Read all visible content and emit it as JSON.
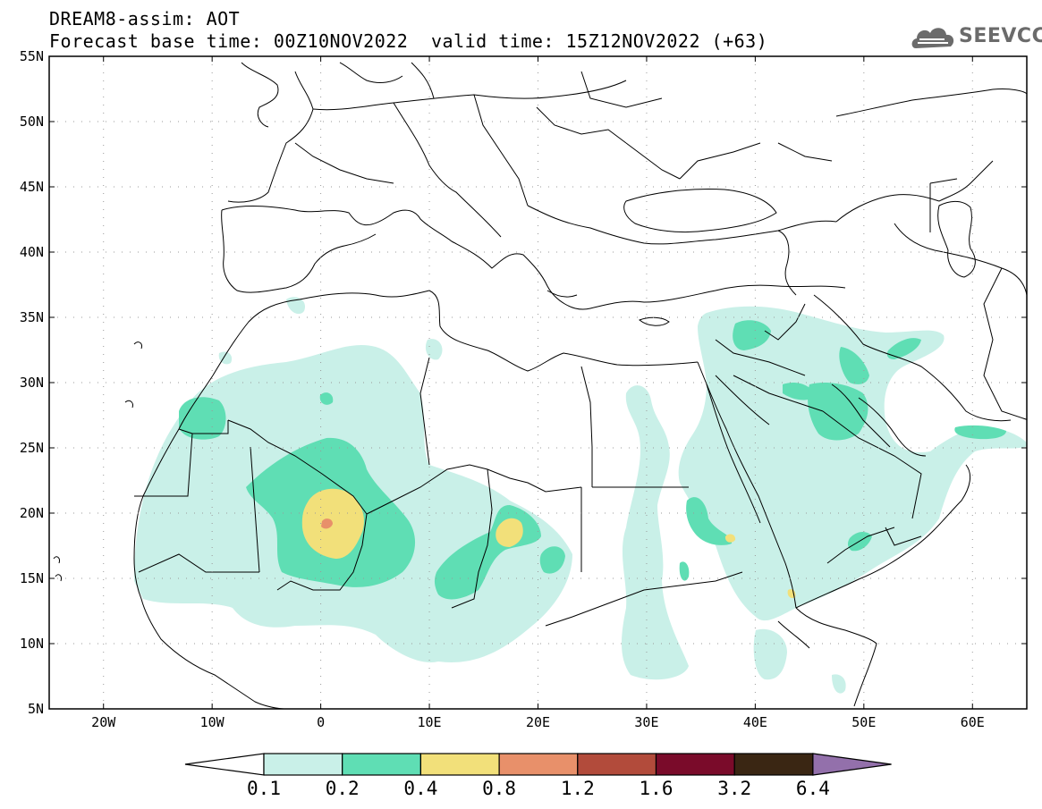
{
  "header": {
    "title_line1": "DREAM8-assim: AOT",
    "title_line2": "Forecast base time: 00Z10NOV2022",
    "valid_time": "valid time: 15Z12NOV2022 (+63)",
    "logo_text": "SEEVCCC"
  },
  "map": {
    "lon_range": [
      -25,
      65
    ],
    "lat_range": [
      5,
      55
    ],
    "lat_ticks": [
      {
        "value": 55,
        "label": "55N"
      },
      {
        "value": 50,
        "label": "50N"
      },
      {
        "value": 45,
        "label": "45N"
      },
      {
        "value": 40,
        "label": "40N"
      },
      {
        "value": 35,
        "label": "35N"
      },
      {
        "value": 30,
        "label": "30N"
      },
      {
        "value": 25,
        "label": "25N"
      },
      {
        "value": 20,
        "label": "20N"
      },
      {
        "value": 15,
        "label": "15N"
      },
      {
        "value": 10,
        "label": "10N"
      },
      {
        "value": 5,
        "label": "5N"
      }
    ],
    "lon_ticks": [
      {
        "value": -20,
        "label": "20W"
      },
      {
        "value": -10,
        "label": "10W"
      },
      {
        "value": 0,
        "label": "0"
      },
      {
        "value": 10,
        "label": "10E"
      },
      {
        "value": 20,
        "label": "20E"
      },
      {
        "value": 30,
        "label": "30E"
      },
      {
        "value": 40,
        "label": "40E"
      },
      {
        "value": 50,
        "label": "50E"
      },
      {
        "value": 60,
        "label": "60E"
      }
    ],
    "grid": "dotted"
  },
  "colorbar": {
    "labels": [
      "0.1",
      "0.2",
      "0.4",
      "0.8",
      "1.2",
      "1.6",
      "3.2",
      "6.4"
    ],
    "colors": [
      "#c9f0e8",
      "#5fdeb4",
      "#f2e07a",
      "#e8906a",
      "#b24b3b",
      "#7a0b2a",
      "#3a2613",
      "#9370ab"
    ],
    "under_color": "#ffffff"
  }
}
